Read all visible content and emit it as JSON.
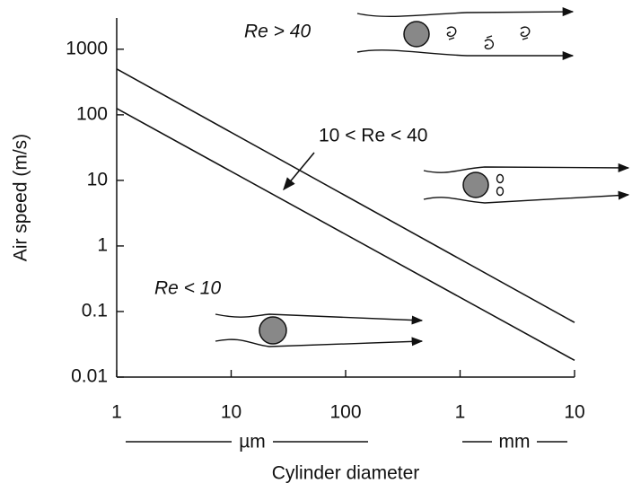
{
  "chart_data": {
    "type": "line",
    "x_label": "Cylinder diameter",
    "y_label": "Air speed (m/s)",
    "x_units": [
      "µm",
      "mm"
    ],
    "x": [
      1,
      10000
    ],
    "series": [
      {
        "color": "#111111",
        "values": [
          500,
          0.068
        ]
      },
      {
        "color": "#111111",
        "values": [
          125,
          0.018
        ]
      }
    ],
    "xlim": [
      1,
      10000
    ],
    "ylim": [
      0.01,
      3000
    ],
    "xlog": true,
    "ylog": true,
    "xticks": [
      1,
      10,
      100,
      {
        "value": 1000,
        "label": "1"
      },
      {
        "value": 10000,
        "label": "10"
      }
    ],
    "yticks": [
      0.01,
      0.1,
      1,
      10,
      100,
      1000
    ],
    "annotations": [
      "Re > 40",
      "10 < Re < 40",
      "Re < 10"
    ]
  }
}
